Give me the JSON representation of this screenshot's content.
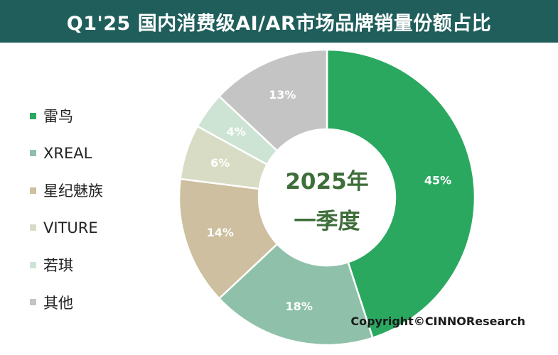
{
  "title": "Q1'25 国内消费级AI/AR市场品牌销量份额占比",
  "center_label": {
    "line1": "2025年",
    "line2": "一季度"
  },
  "copyright": "Copyright©CINNOResearch",
  "colors": {
    "title_bg": "#1f5e5b",
    "center_text": "#3e6e3a"
  },
  "chart_data": {
    "type": "pie",
    "variant": "donut",
    "title": "Q1'25 国内消费级AI/AR市场品牌销量份额占比",
    "legend_position": "left",
    "categories": [
      "雷鸟",
      "XREAL",
      "星纪魅族",
      "VITURE",
      "若琪",
      "其他"
    ],
    "values": [
      45,
      18,
      14,
      6,
      4,
      13
    ],
    "unit": "%",
    "data_labels": [
      "45%",
      "18%",
      "14%",
      "6%",
      "4%",
      "13%"
    ],
    "colors": [
      "#2aa860",
      "#8fc0a9",
      "#cdbf9f",
      "#d8dcc4",
      "#cde4d4",
      "#c4c4c4"
    ]
  },
  "legend": [
    {
      "label": "雷鸟",
      "color": "#2aa860"
    },
    {
      "label": "XREAL",
      "color": "#8fc0a9"
    },
    {
      "label": "星纪魅族",
      "color": "#cdbf9f"
    },
    {
      "label": "VITURE",
      "color": "#d8dcc4"
    },
    {
      "label": "若琪",
      "color": "#cde4d4"
    },
    {
      "label": "其他",
      "color": "#c4c4c4"
    }
  ]
}
